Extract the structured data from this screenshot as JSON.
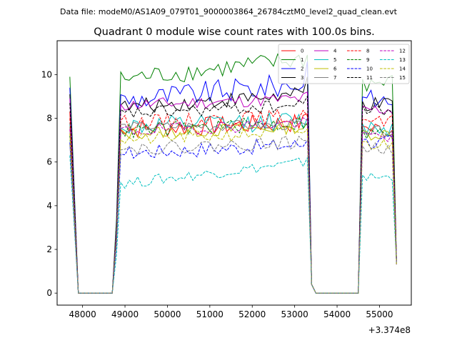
{
  "chart_data": {
    "type": "line",
    "suptitle": "Data file: modeM0/AS1A09_079T01_9000003864_26784cztM0_level2_quad_clean.evt",
    "title": "Quadrant 0 module wise count rates with 100.0s bins.",
    "xlabel": "",
    "ylabel": "",
    "x_offset_label": "+3.374e8",
    "xlim": [
      47400,
      55750
    ],
    "ylim": [
      -0.55,
      11.55
    ],
    "xticks": [
      48000,
      49000,
      50000,
      51000,
      52000,
      53000,
      54000,
      55000
    ],
    "xtick_labels": [
      "48000",
      "49000",
      "50000",
      "51000",
      "52000",
      "53000",
      "54000",
      "55000"
    ],
    "yticks": [
      0,
      2,
      4,
      6,
      8,
      10
    ],
    "ytick_labels": [
      "0",
      "2",
      "4",
      "6",
      "8",
      "10"
    ],
    "legend_position": "upper-right",
    "segment_template": {
      "x": [
        47700,
        47800,
        47900,
        48000,
        48100,
        48200,
        48300,
        48400,
        48500,
        48600,
        48700,
        48800,
        53300,
        53400,
        53500,
        53600,
        53700,
        53800,
        53900,
        54000,
        54100,
        54200,
        54300,
        54400,
        54500,
        54600,
        55400
      ]
    },
    "series": [
      {
        "name": "0",
        "color": "#ff0000",
        "dash": "solid",
        "start": 8.3,
        "level": 7.5,
        "jitter": 0.45,
        "trend": 0.3,
        "peak": 8.2,
        "late": 7.5
      },
      {
        "name": "1",
        "color": "#008000",
        "dash": "solid",
        "start": 9.9,
        "level": 9.8,
        "jitter": 0.45,
        "trend": 0.9,
        "peak": 10.9,
        "late": 9.6
      },
      {
        "name": "2",
        "color": "#0000ff",
        "dash": "solid",
        "start": 9.4,
        "level": 8.8,
        "jitter": 0.55,
        "trend": 0.8,
        "peak": 10.6,
        "late": 8.8
      },
      {
        "name": "3",
        "color": "#000000",
        "dash": "solid",
        "start": 9.1,
        "level": 8.5,
        "jitter": 0.35,
        "trend": 0.6,
        "peak": 9.9,
        "late": 8.6
      },
      {
        "name": "4",
        "color": "#bf00bf",
        "dash": "solid",
        "start": 8.9,
        "level": 8.6,
        "jitter": 0.3,
        "trend": 0.3,
        "peak": 9.2,
        "late": 8.4
      },
      {
        "name": "5",
        "color": "#00bfbf",
        "dash": "solid",
        "start": 7.8,
        "level": 7.6,
        "jitter": 0.45,
        "trend": 0.3,
        "peak": 8.0,
        "late": 7.6
      },
      {
        "name": "6",
        "color": "#bfbf00",
        "dash": "solid",
        "start": 7.5,
        "level": 7.3,
        "jitter": 0.3,
        "trend": 0.3,
        "peak": 7.8,
        "late": 7.3
      },
      {
        "name": "7",
        "color": "#808080",
        "dash": "solid",
        "start": 7.6,
        "level": 7.6,
        "jitter": 0.25,
        "trend": 0.1,
        "peak": 7.7,
        "late": 7.4
      },
      {
        "name": "8",
        "color": "#ff0000",
        "dash": "dashed",
        "start": 8.0,
        "level": 7.8,
        "jitter": 0.35,
        "trend": 0.3,
        "peak": 8.1,
        "late": 7.8
      },
      {
        "name": "9",
        "color": "#008000",
        "dash": "dashed",
        "start": 7.2,
        "level": 7.4,
        "jitter": 0.35,
        "trend": 0.4,
        "peak": 7.8,
        "late": 7.3
      },
      {
        "name": "10",
        "color": "#0000ff",
        "dash": "dashed",
        "start": 6.9,
        "level": 6.4,
        "jitter": 0.35,
        "trend": 0.4,
        "peak": 7.0,
        "late": 6.9
      },
      {
        "name": "11",
        "color": "#000000",
        "dash": "dashed",
        "start": 8.7,
        "level": 8.2,
        "jitter": 0.3,
        "trend": 0.4,
        "peak": 9.0,
        "late": 8.4
      },
      {
        "name": "12",
        "color": "#bf00bf",
        "dash": "dashed",
        "start": 7.5,
        "level": 7.4,
        "jitter": 0.3,
        "trend": 0.4,
        "peak": 7.9,
        "late": 7.2
      },
      {
        "name": "13",
        "color": "#00bfbf",
        "dash": "dashed",
        "start": 6.3,
        "level": 5.0,
        "jitter": 0.25,
        "trend": 1.0,
        "peak": 6.2,
        "late": 5.3
      },
      {
        "name": "14",
        "color": "#bfbf00",
        "dash": "dashed",
        "start": 7.3,
        "level": 7.0,
        "jitter": 0.3,
        "trend": 0.4,
        "peak": 7.5,
        "late": 6.8
      },
      {
        "name": "15",
        "color": "#808080",
        "dash": "dashed",
        "start": 6.8,
        "level": 6.6,
        "jitter": 0.3,
        "trend": 0.3,
        "peak": 7.0,
        "late": 6.6
      }
    ]
  }
}
